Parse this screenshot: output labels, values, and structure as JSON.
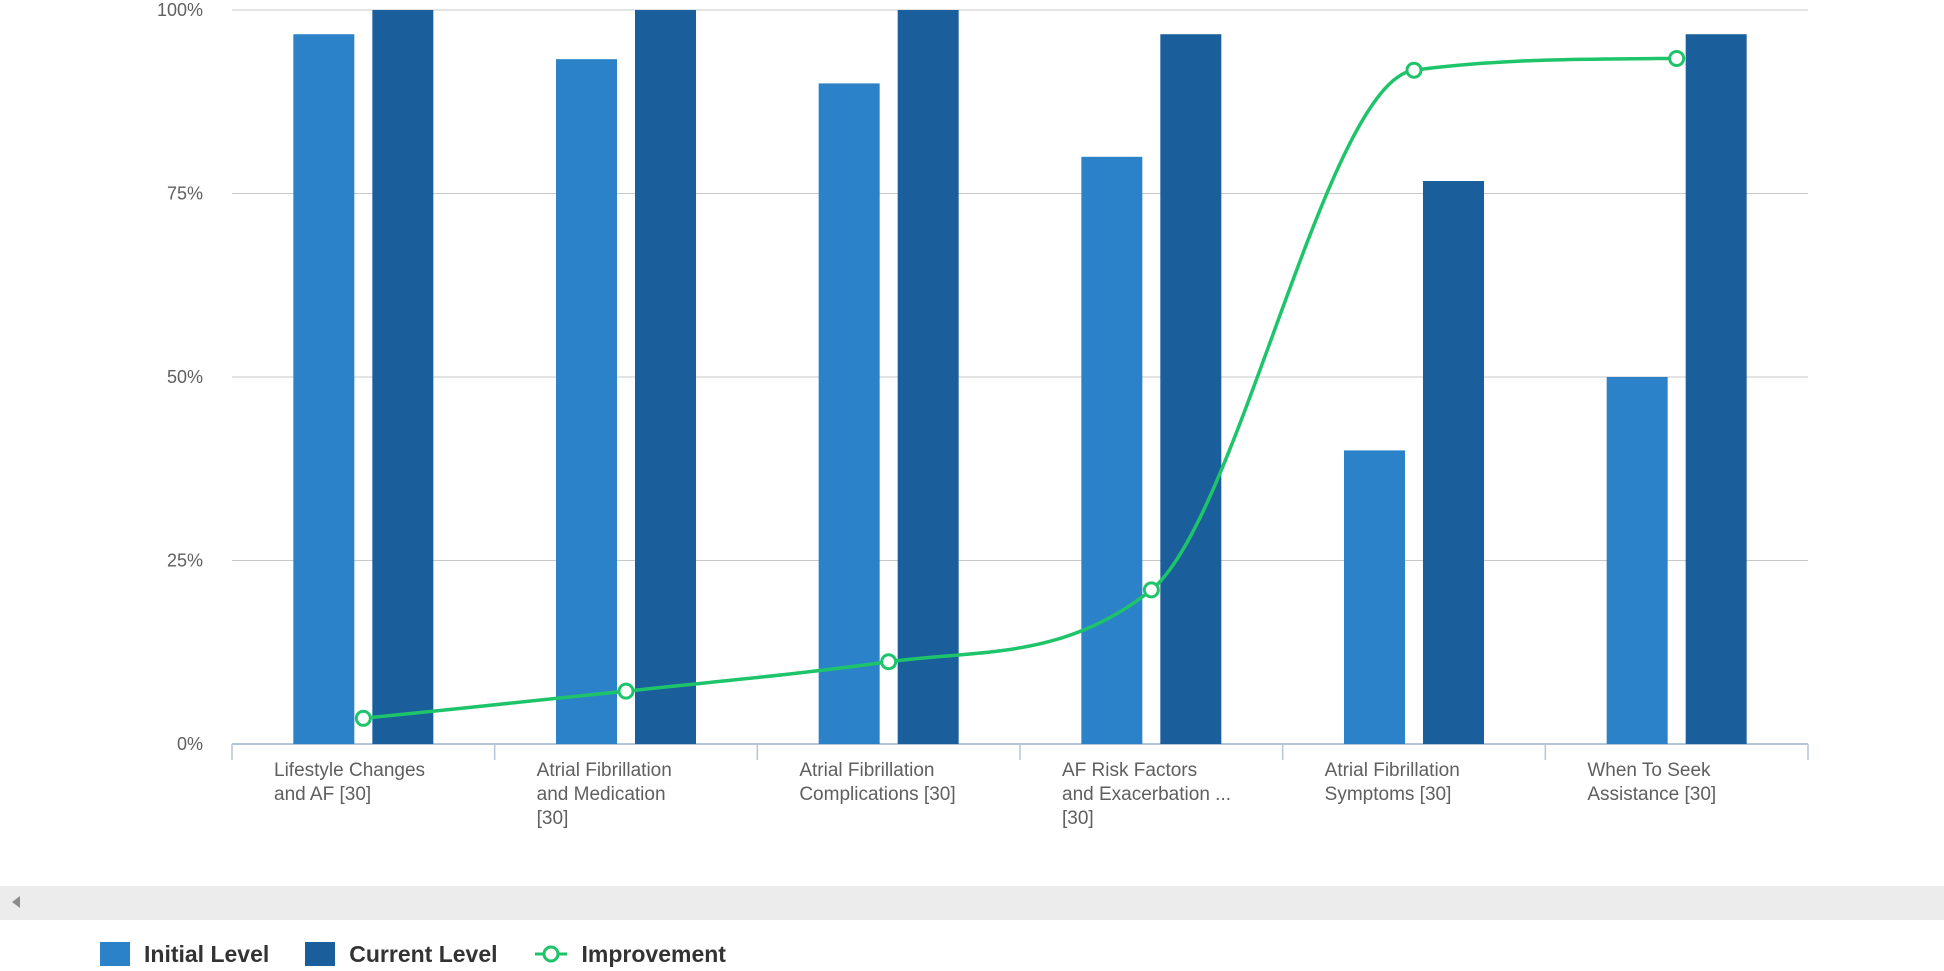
{
  "colors": {
    "initial": "#2b82c9",
    "current": "#1a5f9b",
    "improvement": "#1ec46a",
    "grid": "#c8c8c8",
    "axis": "#b5c6d8"
  },
  "chart_data": {
    "type": "bar",
    "categories": [
      [
        "Lifestyle Changes",
        "and AF [30]"
      ],
      [
        "Atrial Fibrillation",
        "and Medication",
        "[30]"
      ],
      [
        "Atrial Fibrillation",
        "Complications [30]"
      ],
      [
        "AF Risk Factors",
        "and Exacerbation ...",
        "[30]"
      ],
      [
        "Atrial Fibrillation",
        "Symptoms [30]"
      ],
      [
        "When To Seek",
        "Assistance [30]"
      ]
    ],
    "series": [
      {
        "name": "Initial Level",
        "kind": "bar",
        "values": [
          96.7,
          93.3,
          90.0,
          80.0,
          40.0,
          50.0
        ]
      },
      {
        "name": "Current Level",
        "kind": "bar",
        "values": [
          100.0,
          100.0,
          100.0,
          96.7,
          76.7,
          96.7
        ]
      },
      {
        "name": "Improvement",
        "kind": "line",
        "values": [
          3.5,
          7.2,
          11.2,
          21.0,
          91.8,
          93.4
        ]
      }
    ],
    "y_ticks": [
      "0%",
      "25%",
      "50%",
      "75%",
      "100%"
    ],
    "ylim": [
      0,
      100
    ],
    "grid": true,
    "legend_position": "bottom-left"
  },
  "legend": {
    "items": [
      {
        "label": "Initial Level",
        "type": "swatch",
        "color_key": "initial"
      },
      {
        "label": "Current Level",
        "type": "swatch",
        "color_key": "current"
      },
      {
        "label": "Improvement",
        "type": "line",
        "color_key": "improvement"
      }
    ]
  }
}
